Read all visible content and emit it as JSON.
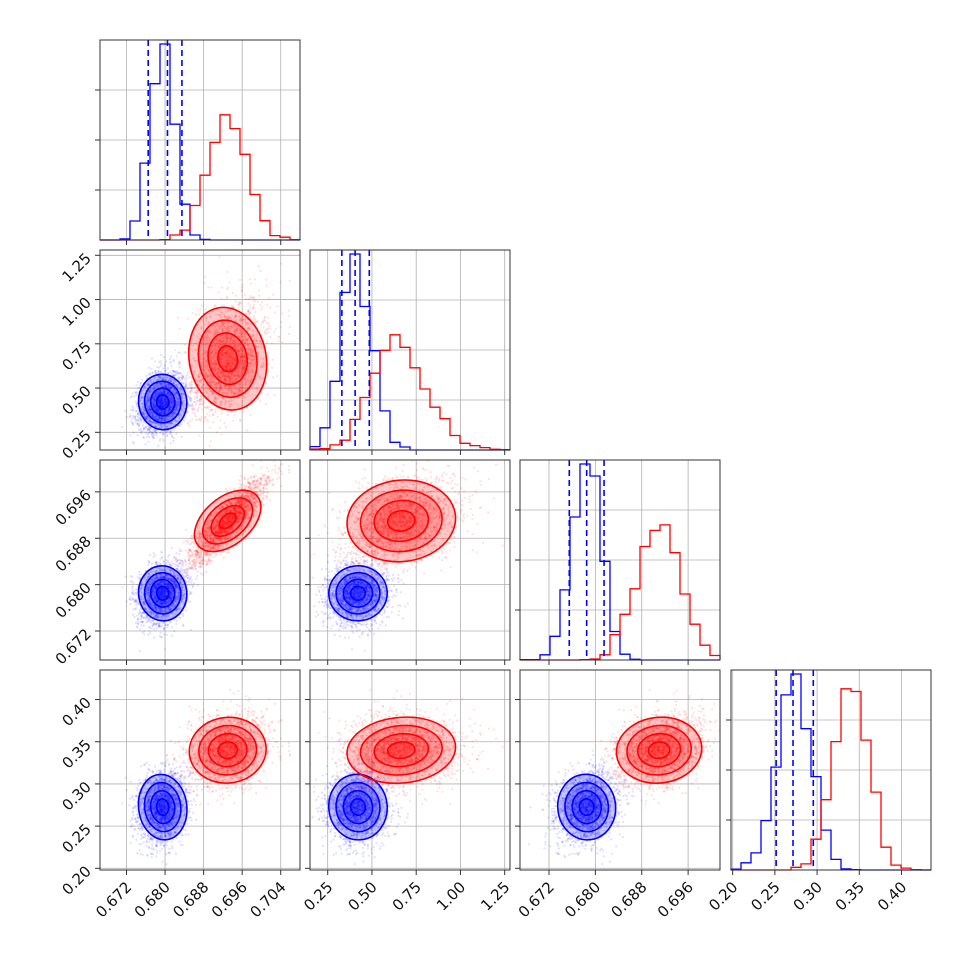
{
  "chart_data": {
    "type": "scatter",
    "subtype": "corner",
    "title": "",
    "parameters": [
      {
        "ticks": [
          "0.672",
          "0.680",
          "0.688",
          "0.696",
          "0.704"
        ],
        "tick_values": [
          0.672,
          0.68,
          0.688,
          0.696,
          0.704
        ],
        "range": [
          0.6665,
          0.708
        ]
      },
      {
        "ticks": [
          "0.25",
          "0.50",
          "0.75",
          "1.00",
          "1.25"
        ],
        "tick_values": [
          0.25,
          0.5,
          0.75,
          1.0,
          1.25
        ],
        "range": [
          0.15,
          1.28
        ]
      },
      {
        "ticks": [
          "0.672",
          "0.680",
          "0.688",
          "0.696"
        ],
        "tick_values": [
          0.672,
          0.68,
          0.688,
          0.696
        ],
        "range": [
          0.667,
          0.7015
        ]
      },
      {
        "ticks": [
          "0.20",
          "0.25",
          "0.30",
          "0.35",
          "0.40"
        ],
        "tick_values": [
          0.2,
          0.25,
          0.3,
          0.35,
          0.4
        ],
        "range": [
          0.198,
          0.435
        ]
      }
    ],
    "series": [
      {
        "color": "#0000ff",
        "mean": [
          0.6795,
          0.41,
          0.6785,
          0.2725
        ],
        "sd": [
          0.0025,
          0.075,
          0.0025,
          0.0205
        ],
        "corr": 0.25,
        "quantiles_shown": true
      },
      {
        "color": "#ff0000",
        "mean": [
          0.693,
          0.645,
          0.691,
          0.34
        ],
        "sd": [
          0.004,
          0.14,
          0.0037,
          0.0205
        ],
        "corr": 0.4,
        "corr_01_02": 0.88,
        "quantiles_shown": false
      }
    ],
    "quantile_lines": [
      [
        0.6765,
        0.6805,
        0.6835
      ],
      [
        0.33,
        0.405,
        0.485
      ],
      [
        0.6755,
        0.6785,
        0.6815
      ],
      [
        0.2515,
        0.2715,
        0.2955
      ]
    ],
    "histogram_bins": 20,
    "grid": true,
    "legend": "none"
  }
}
